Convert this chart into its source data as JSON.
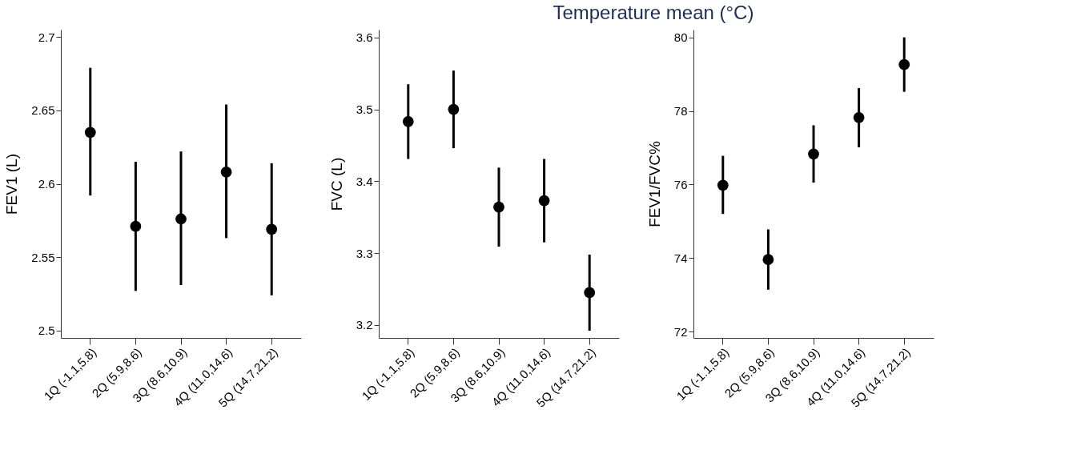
{
  "chart_data": [
    {
      "type": "scatter",
      "ylabel": "FEV1 (L)",
      "categories": [
        "1Q (-1.1,5.8)",
        "2Q (5.9,8.6)",
        "3Q (8.6,10.9)",
        "4Q (11.0,14.6)",
        "5Q (14.7,21.2)"
      ],
      "values": [
        2.635,
        2.571,
        2.576,
        2.608,
        2.569
      ],
      "errors": [
        [
          2.592,
          2.679
        ],
        [
          2.527,
          2.615
        ],
        [
          2.531,
          2.622
        ],
        [
          2.563,
          2.654
        ],
        [
          2.524,
          2.614
        ]
      ],
      "color": "#000000",
      "marker": "circle",
      "ylim": [
        2.495,
        2.705
      ],
      "yticks": [
        2.5,
        2.55,
        2.6,
        2.65,
        2.7
      ],
      "grid": false
    },
    {
      "type": "scatter",
      "title": "Temperature mean (°C)",
      "ylabel": "FVC (L)",
      "categories": [
        "1Q (-1.1,5.8)",
        "2Q (5.9,8.6)",
        "3Q (8.6,10.9)",
        "4Q (11.0,14.6)",
        "5Q (14.7,21.2)"
      ],
      "values": [
        3.483,
        3.5,
        3.364,
        3.373,
        3.245
      ],
      "errors": [
        [
          3.431,
          3.535
        ],
        [
          3.446,
          3.554
        ],
        [
          3.309,
          3.419
        ],
        [
          3.315,
          3.431
        ],
        [
          3.192,
          3.298
        ]
      ],
      "color": "#000000",
      "marker": "circle",
      "ylim": [
        3.182,
        3.611
      ],
      "yticks": [
        3.2,
        3.3,
        3.4,
        3.5,
        3.6
      ],
      "grid": false
    },
    {
      "type": "scatter",
      "ylabel": "FEV1/FVC%",
      "categories": [
        "1Q (-1.1,5.8)",
        "2Q (5.9,8.6)",
        "3Q (8.6,10.9)",
        "4Q (11.0,14.6)",
        "5Q (14.7,21.2)"
      ],
      "values": [
        75.98,
        73.96,
        76.83,
        77.82,
        79.26
      ],
      "errors": [
        [
          75.2,
          76.78
        ],
        [
          73.14,
          74.78
        ],
        [
          76.05,
          77.61
        ],
        [
          77.01,
          78.62
        ],
        [
          78.52,
          80.0
        ]
      ],
      "color": "#000000",
      "marker": "circle",
      "ylim": [
        71.83,
        80.21
      ],
      "yticks": [
        72,
        74,
        76,
        78,
        80
      ],
      "grid": false
    }
  ]
}
